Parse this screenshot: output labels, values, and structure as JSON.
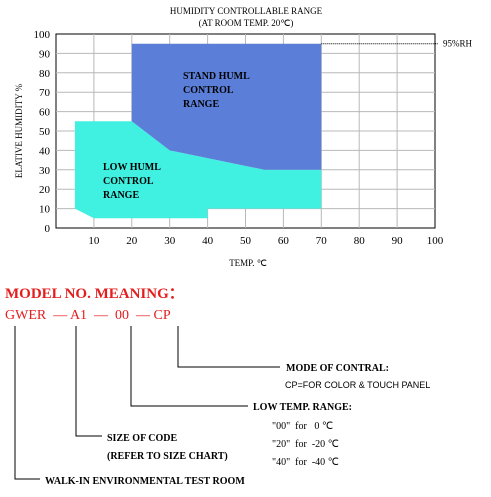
{
  "chart_data": {
    "type": "area",
    "title": "HUMIDITY CONTROLLABLE RANGE",
    "subtitle": "(AT ROOM TEMP. 20℃)",
    "xlabel": "TEMP. ℃",
    "ylabel": "ELATIVE HUMIDITY %",
    "xlim": [
      0,
      100
    ],
    "ylim": [
      0,
      100
    ],
    "x_ticks": [
      10,
      20,
      30,
      40,
      50,
      60,
      70,
      80,
      90,
      100
    ],
    "y_ticks": [
      0,
      10,
      20,
      30,
      40,
      50,
      60,
      70,
      80,
      90,
      100
    ],
    "grid": true,
    "reference_line": {
      "y": 95,
      "label": "95%RH"
    },
    "series": [
      {
        "name": "LOW HUML CONTROL RANGE",
        "label_lines": [
          "LOW HUML",
          "CONTROL",
          "RANGE"
        ],
        "color": "#40f0e0",
        "points": [
          [
            5,
            55
          ],
          [
            20,
            55
          ],
          [
            30,
            40
          ],
          [
            55,
            30
          ],
          [
            70,
            30
          ],
          [
            70,
            10
          ],
          [
            40,
            10
          ],
          [
            40,
            5
          ],
          [
            10,
            5
          ],
          [
            5,
            10
          ]
        ]
      },
      {
        "name": "STAND HUML CONTROL RANGE",
        "label_lines": [
          "STAND HUML",
          "CONTROL",
          "RANGE"
        ],
        "color": "#5b7fd9",
        "points": [
          [
            20,
            95
          ],
          [
            70,
            95
          ],
          [
            70,
            30
          ],
          [
            55,
            30
          ],
          [
            30,
            40
          ],
          [
            20,
            55
          ]
        ]
      }
    ]
  },
  "model": {
    "heading": "MODEL NO. MEANING：",
    "code": "GWER  — A1  —  00  — CP",
    "callouts": {
      "mode": {
        "title": "MODE OF CONTRAL:",
        "detail": "CP=FOR COLOR & TOUCH PANEL"
      },
      "low_temp": {
        "title": "LOW TEMP. RANGE:",
        "options": [
          "\"00\"  for   0 ℃",
          "\"20\"  for  -20 ℃",
          "\"40\"  for  -40 ℃"
        ]
      },
      "size": {
        "title": "SIZE OF CODE",
        "detail": "(REFER TO SIZE CHART)"
      },
      "walkin": {
        "title": "WALK-IN ENVIRONMENTAL TEST ROOM"
      }
    }
  }
}
